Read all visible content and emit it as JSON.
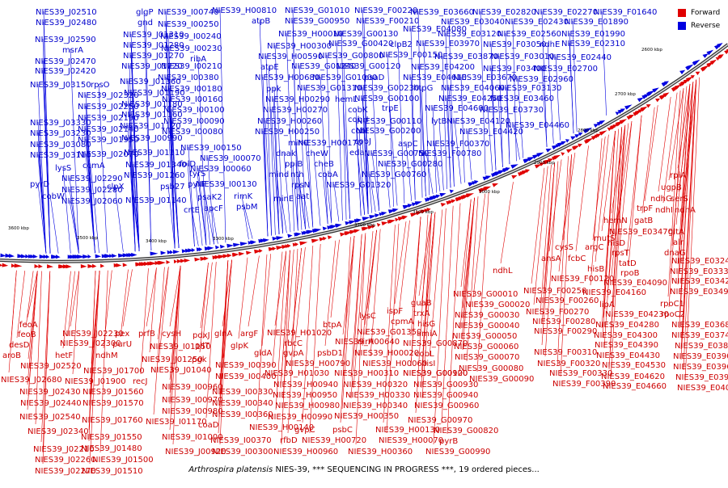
{
  "caption": {
    "organism": "Arthrospira platensis",
    "rest": "NIES-39, *** SEQUENCING IN PROGRESS ***, 19 ordered pieces..."
  },
  "legend": {
    "forward": "Forward",
    "reverse": "Reverse"
  },
  "colors": {
    "forward": "#e00000",
    "reverse": "#0000e0",
    "forward_text": "#cc0000",
    "reverse_text": "#0000cc",
    "backbone": "#888888"
  },
  "upper_ticks": [
    "2600 kbp",
    "2700 kbp",
    "2800 kbp",
    "2900 kbp",
    "3000 kbp",
    "3100 kbp",
    "3200 kbp"
  ],
  "lower_ticks": [
    "3300 kbp",
    "3400 kbp",
    "3500 kbp",
    "3600 kbp"
  ],
  "reverse_labels": [
    [
      "NIES39_J02510",
      44,
      10
    ],
    [
      "glgP",
      168,
      10
    ],
    [
      "NIES39_I00740",
      195,
      10
    ],
    [
      "NIES39_H00810",
      262,
      8
    ],
    [
      "NIES39_G01010",
      352,
      8
    ],
    [
      "NIES39_F00220",
      438,
      8
    ],
    [
      "NIES39_E03660",
      507,
      10
    ],
    [
      "NIES39_E02820",
      584,
      10
    ],
    [
      "NIES39_E02270",
      660,
      10
    ],
    [
      "NIES39_F01640",
      734,
      10
    ],
    [
      "NIES39_J02480",
      44,
      23
    ],
    [
      "gnd",
      170,
      23
    ],
    [
      "NIES39_I00250",
      195,
      25
    ],
    [
      "atpB",
      311,
      21
    ],
    [
      "NIES39_G00950",
      352,
      21
    ],
    [
      "NIES39_F00210",
      440,
      21
    ],
    [
      "NIES39_E03040",
      545,
      22
    ],
    [
      "NIES39_E02430",
      624,
      22
    ],
    [
      "NIES39_E01890",
      698,
      22
    ],
    [
      "NIES39_H00010",
      344,
      37
    ],
    [
      "NIES39_E04080",
      498,
      31
    ],
    [
      "NIES39_E03120",
      541,
      37
    ],
    [
      "NIES39_E02560",
      615,
      37
    ],
    [
      "NIES39_E01990",
      694,
      37
    ],
    [
      "NIES39_J02590",
      43,
      44
    ],
    [
      "NIES39_J01310",
      152,
      38
    ],
    [
      "NIES39_I00240",
      198,
      40
    ],
    [
      "NIES39_G00130",
      412,
      37
    ],
    [
      "msrA",
      77,
      57
    ],
    [
      "NIES39_J01280",
      152,
      51
    ],
    [
      "NIES39_I00230",
      199,
      55
    ],
    [
      "NIES39_H00300",
      330,
      52
    ],
    [
      "NIES39_G00420",
      406,
      49
    ],
    [
      "clpB2",
      482,
      50
    ],
    [
      "NIES39_E03970",
      514,
      49
    ],
    [
      "NIES39_F03050",
      597,
      50
    ],
    [
      "ndhE",
      667,
      50
    ],
    [
      "NIES39_E02310",
      694,
      49
    ],
    [
      "NIES39_J02470",
      43,
      71
    ],
    [
      "NIES39_J01270",
      152,
      64
    ],
    [
      "ribA",
      235,
      68
    ],
    [
      "NIES39_H00590",
      319,
      65
    ],
    [
      "NIES39_G00800",
      394,
      64
    ],
    [
      "NIES39_F00150",
      469,
      63
    ],
    [
      "NIES39_E03870",
      537,
      65
    ],
    [
      "NIES39_F03010",
      607,
      65
    ],
    [
      "NIES39_E02440",
      677,
      66
    ],
    [
      "NIES39_J02420",
      43,
      83
    ],
    [
      "NIES39_J01220",
      150,
      77
    ],
    [
      "NIES39_I00210",
      199,
      77
    ],
    [
      "atpE",
      322,
      78
    ],
    [
      "NIES39_G01240",
      360,
      77
    ],
    [
      "NIES39_G00120",
      415,
      77
    ],
    [
      "NIES39_E04200",
      508,
      78
    ],
    [
      "NIES39_F03400",
      597,
      80
    ],
    [
      "NIES39_E02700",
      660,
      80
    ],
    [
      "NIES39_J03150",
      37,
      100
    ],
    [
      "rpsO",
      112,
      100
    ],
    [
      "NIES39_J01360",
      148,
      96
    ],
    [
      "NIES39_I00380",
      195,
      91
    ],
    [
      "NIES39_H00680",
      315,
      91
    ],
    [
      "NIES39_G01000",
      386,
      91
    ],
    [
      "psaD",
      450,
      91
    ],
    [
      "NIES39_E04610",
      498,
      91
    ],
    [
      "NIES39_E03670",
      560,
      91
    ],
    [
      "NIES39_E02960",
      630,
      93
    ],
    [
      "NIES39_J02320",
      96,
      113
    ],
    [
      "NIES39_J01190",
      153,
      110
    ],
    [
      "NIES39_I00180",
      199,
      105
    ],
    [
      "ppk",
      329,
      105
    ],
    [
      "NIES39_G01310",
      367,
      104
    ],
    [
      "NIES39_G00230",
      438,
      104
    ],
    [
      "htpG",
      511,
      104
    ],
    [
      "NIES39_E04060",
      545,
      104
    ],
    [
      "NIES39_F03130",
      616,
      104
    ],
    [
      "NIES39_J02250",
      96,
      127
    ],
    [
      "NIES39_J01180",
      150,
      124
    ],
    [
      "NIES39_I00160",
      200,
      118
    ],
    [
      "NIES39_H00290",
      328,
      118
    ],
    [
      "hemL",
      414,
      118
    ],
    [
      "NIES39_G00100",
      438,
      117
    ],
    [
      "NIES39_E04250",
      542,
      117
    ],
    [
      "NIES39_E03460",
      606,
      117
    ],
    [
      "NIES39_J01160",
      150,
      137
    ],
    [
      "NIES39_I00100",
      202,
      131
    ],
    [
      "NIES39_H00270",
      325,
      131
    ],
    [
      "cobK",
      430,
      131
    ],
    [
      "trpE",
      472,
      129
    ],
    [
      "NIES39_E04600",
      525,
      129
    ],
    [
      "NIES39_E03730",
      593,
      131
    ],
    [
      "NIES39_J03330",
      37,
      147
    ],
    [
      "NIES39_J02190",
      96,
      141
    ],
    [
      "NIES39_J01120",
      148,
      151
    ],
    [
      "NIES39_I00090",
      202,
      145
    ],
    [
      "NIES39_H00260",
      318,
      145
    ],
    [
      "cobH",
      430,
      143
    ],
    [
      "NIES39_G00110",
      441,
      145
    ],
    [
      "lytB",
      533,
      145
    ],
    [
      "NIES39_E04120",
      552,
      145
    ],
    [
      "NIES39_E04460",
      625,
      150
    ],
    [
      "NIES39_J03230",
      37,
      160
    ],
    [
      "NIES39_J02140",
      96,
      155
    ],
    [
      "NIES39_J00990",
      150,
      166
    ],
    [
      "NIES39_I00080",
      200,
      158
    ],
    [
      "NIES39_H00250",
      315,
      158
    ],
    [
      "cobI",
      434,
      157
    ],
    [
      "NIES39_G00200",
      440,
      157
    ],
    [
      "NIES39_E04420",
      568,
      158
    ],
    [
      "NIES39_J03080",
      37,
      174
    ],
    [
      "NIES39_J01950",
      96,
      168
    ],
    [
      "minC",
      356,
      172
    ],
    [
      "NIES39_H00170",
      368,
      172
    ],
    [
      "cobJ",
      438,
      170
    ],
    [
      "aspC",
      492,
      173
    ],
    [
      "NIES39_J03110",
      37,
      187
    ],
    [
      "NIES39_J02070",
      96,
      186
    ],
    [
      "NIES39_J01110",
      153,
      184
    ],
    [
      "NIES39_I00150",
      223,
      178
    ],
    [
      "dnak",
      341,
      185
    ],
    [
      "cheW",
      378,
      185
    ],
    [
      "eda",
      432,
      184
    ],
    [
      "NIES39_G00750",
      450,
      185
    ],
    [
      "NIES39_F00780",
      517,
      185
    ],
    [
      "NIES39_F00370",
      527,
      173
    ],
    [
      "ccmA",
      102,
      200
    ],
    [
      "NIES39_J01340",
      155,
      199
    ],
    [
      "folD",
      222,
      198
    ],
    [
      "NIES39_I00070",
      247,
      191
    ],
    [
      "ppiB",
      352,
      198
    ],
    [
      "cheB",
      388,
      198
    ],
    [
      "NIES39_G00280",
      467,
      198
    ],
    [
      "lysS",
      68,
      203
    ],
    [
      "NIES39_J02290",
      76,
      216
    ],
    [
      "NIES39_J01260",
      153,
      212
    ],
    [
      "tyrS",
      234,
      210
    ],
    [
      "NIES39_I00060",
      235,
      204
    ],
    [
      "mind",
      332,
      211
    ],
    [
      "nth",
      359,
      211
    ],
    [
      "cobA",
      393,
      211
    ],
    [
      "NIES39_G00760",
      447,
      211
    ],
    [
      "pyrD",
      37,
      223
    ],
    [
      "NIES39_J02280",
      76,
      230
    ],
    [
      "clpX",
      132,
      226
    ],
    [
      "psb27",
      198,
      226
    ],
    [
      "pyrF",
      232,
      223
    ],
    [
      "NIES39_I00130",
      242,
      223
    ],
    [
      "rpsN",
      360,
      224
    ],
    [
      "NIES39_G01320",
      403,
      224
    ],
    [
      "cobW",
      52,
      238
    ],
    [
      "NIES39_J02060",
      76,
      244
    ],
    [
      "NIES39_J01140",
      155,
      243
    ],
    [
      "psaK2",
      244,
      239
    ],
    [
      "rimK",
      289,
      238
    ],
    [
      "aat",
      366,
      238
    ],
    [
      "minE",
      338,
      241
    ],
    [
      "crtE",
      227,
      255
    ],
    [
      "apcF",
      252,
      253
    ],
    [
      "psbM",
      292,
      251
    ]
  ],
  "forward_labels": [
    [
      "rpiA",
      828,
      212
    ],
    [
      "ugpB",
      817,
      227
    ],
    [
      "ndhG",
      804,
      241
    ],
    [
      "serS",
      829,
      241
    ],
    [
      "trpF",
      787,
      253
    ],
    [
      "ndhI",
      810,
      255
    ],
    [
      "ndhA",
      834,
      255
    ],
    [
      "gatB",
      784,
      268
    ],
    [
      "hemN",
      746,
      268
    ],
    [
      "NIES39_E03470",
      753,
      282
    ],
    [
      "gltA",
      826,
      282
    ],
    [
      "alr",
      832,
      295
    ],
    [
      "mutS",
      734,
      290
    ],
    [
      "hisD",
      751,
      296
    ],
    [
      "dnaG",
      821,
      308
    ],
    [
      "rpsT",
      756,
      308
    ],
    [
      "cysS",
      686,
      301
    ],
    [
      "argC",
      723,
      301
    ],
    [
      "tatD",
      765,
      321
    ],
    [
      "ansA",
      669,
      315
    ],
    [
      "fcbC",
      702,
      315
    ],
    [
      "rpoB",
      767,
      333
    ],
    [
      "NIES39_E03240",
      830,
      318
    ],
    [
      "NIES39_E03330",
      828,
      331
    ],
    [
      "hisB",
      726,
      328
    ],
    [
      "NIES39_F00120",
      681,
      340
    ],
    [
      "NIES39_E04090",
      746,
      345
    ],
    [
      "NIES39_E03420",
      830,
      343
    ],
    [
      "ndhL",
      609,
      330
    ],
    [
      "NIES39_E03490",
      828,
      356
    ],
    [
      "NIES39_F00250",
      647,
      355
    ],
    [
      "NIES39_E04160",
      720,
      357
    ],
    [
      "NIES39_G00010",
      560,
      359
    ],
    [
      "NIES39_F00260",
      662,
      367
    ],
    [
      "rpoC1",
      816,
      371
    ],
    [
      "lipA",
      741,
      372
    ],
    [
      "NIES39_G00020",
      575,
      372
    ],
    [
      "NIES39_F00270",
      650,
      381
    ],
    [
      "NIES39_E04230",
      748,
      384
    ],
    [
      "rpoC2",
      817,
      384
    ],
    [
      "guaB",
      508,
      370
    ],
    [
      "trxA",
      511,
      383
    ],
    [
      "ispF",
      478,
      380
    ],
    [
      "lysC",
      444,
      386
    ],
    [
      "cpmA",
      483,
      393
    ],
    [
      "hisG",
      516,
      396
    ],
    [
      "btpA",
      399,
      397
    ],
    [
      "NIES39_G00030",
      562,
      385
    ],
    [
      "NIES39_G00040",
      562,
      398
    ],
    [
      "NIES39_G00050",
      559,
      411
    ],
    [
      "NIES39_G00060",
      561,
      424
    ],
    [
      "NIES39_G00070",
      562,
      437
    ],
    [
      "NIES39_G00080",
      567,
      451
    ],
    [
      "NIES39_G00090",
      580,
      464
    ],
    [
      "NIES39_F00280",
      658,
      393
    ],
    [
      "NIES39_F00290",
      660,
      405
    ],
    [
      "NIES39_F00310",
      660,
      431
    ],
    [
      "NIES39_F00320",
      664,
      445
    ],
    [
      "NIES39_F00330",
      679,
      457
    ],
    [
      "NIES39_F00390",
      683,
      470
    ],
    [
      "NIES39_E04280",
      736,
      397
    ],
    [
      "NIES39_E04300",
      734,
      410
    ],
    [
      "NIES39_E04390",
      735,
      422
    ],
    [
      "NIES39_E04430",
      737,
      435
    ],
    [
      "NIES39_E04530",
      744,
      447
    ],
    [
      "NIES39_E04620",
      743,
      461
    ],
    [
      "NIES39_E04660",
      745,
      473
    ],
    [
      "NIES39_E03680",
      830,
      397
    ],
    [
      "NIES39_E03740",
      830,
      410
    ],
    [
      "NIES39_E03810",
      834,
      423
    ],
    [
      "NIES39_E03900",
      832,
      436
    ],
    [
      "NIES39_E03960",
      832,
      449
    ],
    [
      "NIES39_E03990",
      835,
      462
    ],
    [
      "NIES39_E04040",
      837,
      475
    ],
    [
      "NIES39_G01350",
      441,
      406
    ],
    [
      "amiA",
      515,
      408
    ],
    [
      "NIES39_H00640",
      414,
      418
    ],
    [
      "nirA",
      442,
      418
    ],
    [
      "NIES39_G00870",
      498,
      420
    ],
    [
      "NIES39_H01020",
      330,
      407
    ],
    [
      "rbcC",
      351,
      420
    ],
    [
      "gvpA",
      350,
      432
    ],
    [
      "psbD1",
      392,
      432
    ],
    [
      "NIES39_H00020",
      438,
      432
    ],
    [
      "cobL",
      513,
      433
    ],
    [
      "NIES39_H00790",
      353,
      445
    ],
    [
      "NIES39_H00060",
      448,
      445
    ],
    [
      "hisI",
      521,
      445
    ],
    [
      "NIES39_H01030",
      327,
      457
    ],
    [
      "NIES39_H00310",
      413,
      457
    ],
    [
      "NIES39_G00920",
      498,
      457
    ],
    [
      "NIES39_G00100",
      498,
      457
    ],
    [
      "NIES39_G00930",
      511,
      471
    ],
    [
      "NIES39_G00940",
      511,
      484
    ],
    [
      "NIES39_G00960",
      512,
      497
    ],
    [
      "NIES39_G00970",
      504,
      515
    ],
    [
      "NIES39_G00820",
      536,
      528
    ],
    [
      "NIES39_G00990",
      526,
      554
    ],
    [
      "NIES39_H00320",
      424,
      471
    ],
    [
      "NIES39_H00330",
      427,
      484
    ],
    [
      "NIES39_H00340",
      424,
      497
    ],
    [
      "NIES39_H00350",
      413,
      510
    ],
    [
      "NIES39_H00130",
      464,
      527
    ],
    [
      "NIES39_H00070",
      468,
      540
    ],
    [
      "pyrB",
      543,
      541
    ],
    [
      "NIES39_H00360",
      430,
      554
    ],
    [
      "psbC",
      411,
      527
    ],
    [
      "NIES39_H00720",
      373,
      540
    ],
    [
      "NIES39_H00960",
      338,
      554
    ],
    [
      "NIES39_H00990",
      331,
      511
    ],
    [
      "NIES39_H00980",
      340,
      497
    ],
    [
      "NIES39_H00950",
      337,
      484
    ],
    [
      "NIES39_H00940",
      338,
      471
    ],
    [
      "gvpC",
      364,
      527
    ],
    [
      "rfbD",
      346,
      540
    ],
    [
      "NIES39_H00140",
      308,
      524
    ],
    [
      "feoA",
      24,
      397
    ],
    [
      "feoB",
      22,
      409
    ],
    [
      "desD",
      11,
      422
    ],
    [
      "aroB",
      3,
      435
    ],
    [
      "NIES39_J02230",
      77,
      408
    ],
    [
      "pex",
      142,
      408
    ],
    [
      "hetF",
      68,
      435
    ],
    [
      "NIES39_J02300",
      74,
      420
    ],
    [
      "purU",
      139,
      421
    ],
    [
      "ndhM",
      118,
      435
    ],
    [
      "NIES39_J02520",
      25,
      448
    ],
    [
      "NIES39_J02680",
      1,
      465
    ],
    [
      "NIES39_J01900",
      80,
      467
    ],
    [
      "recJ",
      164,
      467
    ],
    [
      "NIES39_J01700",
      103,
      454
    ],
    [
      "NIES39_J02430",
      24,
      480
    ],
    [
      "NIES39_J01560",
      102,
      480
    ],
    [
      "NIES39_J02440",
      25,
      494
    ],
    [
      "NIES39_J01570",
      102,
      494
    ],
    [
      "NIES39_J02540",
      24,
      511
    ],
    [
      "NIES39_J01760",
      101,
      515
    ],
    [
      "NIES39_J02340",
      34,
      529
    ],
    [
      "NIES39_J02210",
      41,
      551
    ],
    [
      "NIES39_J02260",
      43,
      564
    ],
    [
      "NIES39_J02270",
      43,
      578
    ],
    [
      "NIES39_J01550",
      100,
      536
    ],
    [
      "NIES39_J01480",
      100,
      550
    ],
    [
      "NIES39_J01500",
      114,
      564
    ],
    [
      "NIES39_J01510",
      101,
      578
    ],
    [
      "prfB",
      171,
      408
    ],
    [
      "cysH",
      200,
      408
    ],
    [
      "pdxJ",
      238,
      410
    ],
    [
      "glnA",
      265,
      408
    ],
    [
      "argF",
      297,
      408
    ],
    [
      "NIES39_I01150",
      185,
      424
    ],
    [
      "pilT",
      241,
      423
    ],
    [
      "glpK",
      285,
      423
    ],
    [
      "NIES39_J01250",
      175,
      440
    ],
    [
      "pgk",
      237,
      440
    ],
    [
      "NIES39_J01040",
      186,
      453
    ],
    [
      "NIES39_I00390",
      266,
      447
    ],
    [
      "NIES39_I00400",
      266,
      461
    ],
    [
      "NIES39_I00960",
      200,
      474
    ],
    [
      "NIES39_I00970",
      200,
      490
    ],
    [
      "NIES39_I00980",
      200,
      504
    ],
    [
      "NIES39_I01170",
      180,
      517
    ],
    [
      "coaD",
      245,
      521
    ],
    [
      "NIES39_I01000",
      200,
      536
    ],
    [
      "NIES39_J00920",
      204,
      554
    ],
    [
      "NIES39_I00330",
      262,
      480
    ],
    [
      "NIES39_I00340",
      262,
      494
    ],
    [
      "NIES39_I00360",
      262,
      508
    ],
    [
      "NIES39_I00370",
      260,
      540
    ],
    [
      "NIES39_I00300",
      262,
      554
    ],
    [
      "gldA",
      314,
      432
    ]
  ]
}
